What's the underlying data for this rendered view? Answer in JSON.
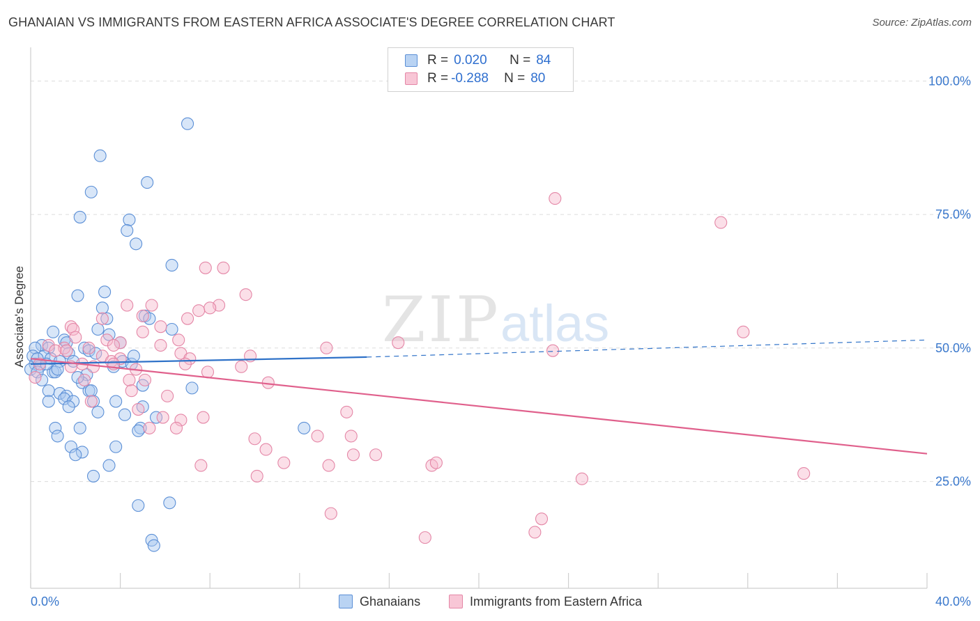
{
  "title": "GHANAIAN VS IMMIGRANTS FROM EASTERN AFRICA ASSOCIATE'S DEGREE CORRELATION CHART",
  "source": "Source: ZipAtlas.com",
  "watermark": {
    "zip": "ZIP",
    "atlas": "atlas"
  },
  "legend": {
    "rows": [
      {
        "r_label": "R =",
        "r_value": "0.020",
        "n_label": "N =",
        "n_value": "84"
      },
      {
        "r_label": "R =",
        "r_value": "-0.288",
        "n_label": "N =",
        "n_value": "80"
      }
    ]
  },
  "bottom_legend": [
    "Ghanaians",
    "Immigrants from Eastern Africa"
  ],
  "colors": {
    "blue_fill": "#a9c8f0",
    "blue_stroke": "#5b8fd6",
    "blue_line": "#2f72c8",
    "pink_fill": "#f6b8cc",
    "pink_stroke": "#e486a6",
    "pink_line": "#e0608c",
    "tick_text": "#3a78cc",
    "grid": "#dcdcdc"
  },
  "chart_data": {
    "type": "scatter",
    "title": "GHANAIAN VS IMMIGRANTS FROM EASTERN AFRICA ASSOCIATE'S DEGREE CORRELATION CHART",
    "xlabel": "",
    "ylabel": "Associate's Degree",
    "xlim": [
      0,
      40
    ],
    "ylim": [
      5,
      105
    ],
    "x_tick_labels": [
      {
        "value": 0,
        "label": "0.0%"
      },
      {
        "value": 40,
        "label": "40.0%"
      }
    ],
    "y_tick_labels": [
      {
        "value": 25,
        "label": "25.0%"
      },
      {
        "value": 50,
        "label": "50.0%"
      },
      {
        "value": 75,
        "label": "75.0%"
      },
      {
        "value": 100,
        "label": "100.0%"
      }
    ],
    "series": [
      {
        "name": "Ghanaians",
        "trend": {
          "x0": 0,
          "y0": 47.0,
          "x1": 15,
          "y1": 48.3,
          "dash_x1": 40,
          "dash_y1": 51.5
        },
        "points": [
          [
            7.0,
            92.0
          ],
          [
            3.1,
            86.0
          ],
          [
            5.2,
            81.0
          ],
          [
            2.7,
            79.2
          ],
          [
            2.2,
            74.5
          ],
          [
            4.4,
            74.0
          ],
          [
            4.3,
            72.0
          ],
          [
            4.7,
            69.5
          ],
          [
            6.3,
            65.5
          ],
          [
            3.3,
            60.5
          ],
          [
            2.1,
            59.8
          ],
          [
            3.2,
            57.5
          ],
          [
            5.1,
            56.0
          ],
          [
            3.4,
            55.5
          ],
          [
            5.3,
            55.5
          ],
          [
            1.0,
            53.0
          ],
          [
            3.0,
            53.5
          ],
          [
            6.3,
            53.5
          ],
          [
            3.5,
            52.5
          ],
          [
            1.5,
            51.5
          ],
          [
            1.6,
            51.0
          ],
          [
            4.0,
            51.0
          ],
          [
            0.5,
            50.5
          ],
          [
            0.2,
            50.0
          ],
          [
            0.8,
            50.0
          ],
          [
            2.4,
            50.0
          ],
          [
            2.6,
            49.5
          ],
          [
            1.7,
            49.0
          ],
          [
            0.6,
            48.5
          ],
          [
            0.1,
            48.5
          ],
          [
            0.9,
            48.0
          ],
          [
            1.3,
            47.5
          ],
          [
            4.1,
            47.5
          ],
          [
            4.5,
            47.0
          ],
          [
            0.2,
            47.0
          ],
          [
            0.4,
            46.5
          ],
          [
            0.0,
            46.0
          ],
          [
            0.3,
            45.5
          ],
          [
            1.0,
            45.5
          ],
          [
            1.1,
            45.5
          ],
          [
            2.5,
            45.0
          ],
          [
            2.3,
            43.5
          ],
          [
            5.0,
            43.0
          ],
          [
            7.2,
            42.5
          ],
          [
            0.8,
            42.0
          ],
          [
            2.6,
            42.0
          ],
          [
            2.7,
            42.0
          ],
          [
            1.3,
            41.5
          ],
          [
            1.6,
            41.0
          ],
          [
            1.5,
            40.5
          ],
          [
            1.9,
            40.0
          ],
          [
            0.8,
            40.0
          ],
          [
            2.8,
            40.0
          ],
          [
            3.8,
            40.0
          ],
          [
            1.7,
            39.0
          ],
          [
            5.0,
            39.0
          ],
          [
            3.0,
            38.0
          ],
          [
            4.2,
            37.5
          ],
          [
            5.6,
            37.0
          ],
          [
            1.1,
            35.0
          ],
          [
            2.2,
            35.0
          ],
          [
            4.9,
            35.0
          ],
          [
            4.8,
            34.5
          ],
          [
            12.2,
            35.0
          ],
          [
            1.2,
            33.5
          ],
          [
            3.8,
            31.5
          ],
          [
            1.8,
            31.5
          ],
          [
            2.3,
            30.5
          ],
          [
            2.0,
            30.0
          ],
          [
            3.5,
            28.0
          ],
          [
            2.8,
            26.0
          ],
          [
            4.8,
            20.5
          ],
          [
            6.2,
            21.0
          ],
          [
            5.4,
            14.0
          ],
          [
            5.5,
            13.0
          ],
          [
            0.3,
            48.0
          ],
          [
            0.7,
            47.0
          ],
          [
            1.9,
            47.5
          ],
          [
            2.9,
            49.0
          ],
          [
            3.7,
            46.5
          ],
          [
            0.5,
            44.0
          ],
          [
            1.2,
            46.0
          ],
          [
            2.1,
            44.5
          ],
          [
            4.6,
            48.5
          ]
        ]
      },
      {
        "name": "Immigrants from Eastern Africa",
        "trend": {
          "x0": 0,
          "y0": 48.0,
          "x1": 40,
          "y1": 30.2
        },
        "points": [
          [
            23.4,
            78.0
          ],
          [
            30.8,
            73.5
          ],
          [
            7.8,
            65.0
          ],
          [
            8.6,
            65.0
          ],
          [
            9.6,
            60.0
          ],
          [
            4.3,
            58.0
          ],
          [
            5.4,
            58.0
          ],
          [
            8.4,
            58.0
          ],
          [
            8.0,
            57.5
          ],
          [
            7.5,
            57.0
          ],
          [
            5.0,
            56.0
          ],
          [
            3.2,
            55.5
          ],
          [
            7.0,
            55.5
          ],
          [
            1.8,
            54.0
          ],
          [
            5.8,
            54.0
          ],
          [
            1.9,
            53.5
          ],
          [
            5.0,
            53.0
          ],
          [
            31.8,
            53.0
          ],
          [
            2.0,
            52.0
          ],
          [
            3.4,
            51.5
          ],
          [
            6.6,
            51.5
          ],
          [
            4.0,
            51.0
          ],
          [
            16.4,
            51.0
          ],
          [
            5.8,
            50.5
          ],
          [
            3.7,
            50.5
          ],
          [
            0.8,
            50.5
          ],
          [
            1.5,
            50.0
          ],
          [
            2.6,
            50.0
          ],
          [
            13.2,
            50.0
          ],
          [
            1.1,
            49.5
          ],
          [
            1.6,
            49.5
          ],
          [
            23.3,
            49.5
          ],
          [
            6.7,
            49.0
          ],
          [
            3.2,
            48.5
          ],
          [
            9.8,
            48.5
          ],
          [
            4.0,
            48.0
          ],
          [
            7.1,
            48.0
          ],
          [
            3.6,
            47.5
          ],
          [
            0.4,
            47.0
          ],
          [
            2.3,
            47.0
          ],
          [
            6.9,
            47.0
          ],
          [
            3.7,
            47.0
          ],
          [
            1.8,
            46.5
          ],
          [
            2.8,
            46.5
          ],
          [
            9.4,
            46.5
          ],
          [
            7.9,
            45.5
          ],
          [
            5.1,
            44.0
          ],
          [
            4.4,
            44.0
          ],
          [
            10.6,
            43.5
          ],
          [
            0.2,
            44.5
          ],
          [
            4.5,
            42.0
          ],
          [
            6.1,
            41.0
          ],
          [
            2.7,
            40.0
          ],
          [
            4.8,
            38.5
          ],
          [
            14.1,
            38.0
          ],
          [
            5.9,
            37.0
          ],
          [
            7.7,
            37.0
          ],
          [
            6.7,
            36.5
          ],
          [
            5.3,
            35.0
          ],
          [
            6.5,
            35.0
          ],
          [
            12.8,
            33.5
          ],
          [
            14.3,
            33.5
          ],
          [
            10.0,
            33.0
          ],
          [
            10.5,
            31.0
          ],
          [
            14.4,
            30.0
          ],
          [
            15.4,
            30.0
          ],
          [
            7.6,
            28.0
          ],
          [
            11.3,
            28.5
          ],
          [
            13.3,
            28.0
          ],
          [
            17.9,
            28.0
          ],
          [
            18.1,
            28.5
          ],
          [
            10.1,
            26.0
          ],
          [
            24.6,
            25.5
          ],
          [
            34.5,
            26.5
          ],
          [
            13.4,
            19.0
          ],
          [
            22.8,
            18.0
          ],
          [
            17.6,
            14.5
          ],
          [
            22.5,
            15.5
          ],
          [
            2.4,
            44.0
          ],
          [
            4.7,
            46.0
          ]
        ]
      }
    ]
  }
}
